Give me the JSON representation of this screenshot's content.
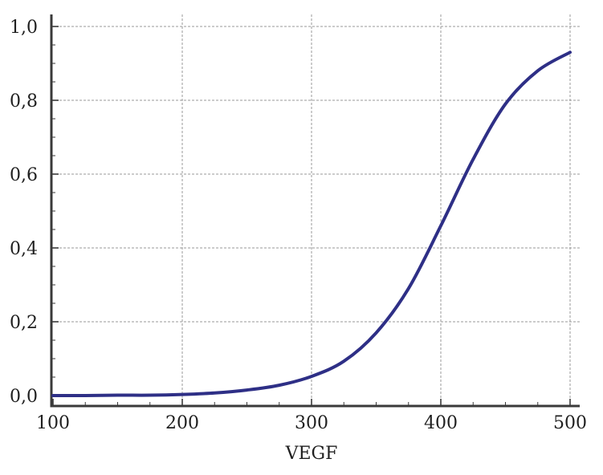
{
  "chart_data": {
    "type": "line",
    "title": "",
    "xlabel": "VEGF",
    "ylabel": "",
    "xlim": [
      100,
      500
    ],
    "ylim": [
      0,
      1
    ],
    "x_ticks": [
      100,
      200,
      300,
      400,
      500
    ],
    "x_tick_labels": [
      "100",
      "200",
      "300",
      "400",
      "500"
    ],
    "y_ticks": [
      0,
      0.2,
      0.4,
      0.6,
      0.8,
      1.0
    ],
    "y_tick_labels": [
      "0,0",
      "0,2",
      "0,4",
      "0,6",
      "0,8",
      "1,0"
    ],
    "grid": true,
    "series": [
      {
        "color": "#2e2f86",
        "x": [
          100,
          125,
          150,
          175,
          200,
          225,
          250,
          275,
          300,
          325,
          350,
          375,
          400,
          425,
          450,
          475,
          500
        ],
        "y": [
          0.0,
          0.0,
          0.001,
          0.001,
          0.003,
          0.007,
          0.015,
          0.028,
          0.052,
          0.093,
          0.17,
          0.29,
          0.46,
          0.64,
          0.79,
          0.88,
          0.93
        ]
      }
    ]
  }
}
